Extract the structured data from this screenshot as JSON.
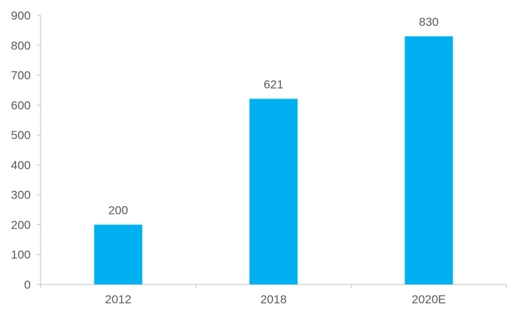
{
  "chart_data": {
    "type": "bar",
    "categories": [
      "2012",
      "2018",
      "2020E"
    ],
    "values": [
      200,
      621,
      830
    ],
    "data_labels": [
      "200",
      "621",
      "830"
    ],
    "title": "",
    "xlabel": "",
    "ylabel": "",
    "ylim": [
      0,
      900
    ],
    "yticks": [
      0,
      100,
      200,
      300,
      400,
      500,
      600,
      700,
      800,
      900
    ],
    "ytick_labels": [
      "0",
      "100",
      "200",
      "300",
      "400",
      "500",
      "600",
      "700",
      "800",
      "900"
    ],
    "grid": false,
    "legend": "none",
    "bar_color": "#00B0F0",
    "axis_color": "#BFBFBF",
    "text_color": "#595959"
  }
}
